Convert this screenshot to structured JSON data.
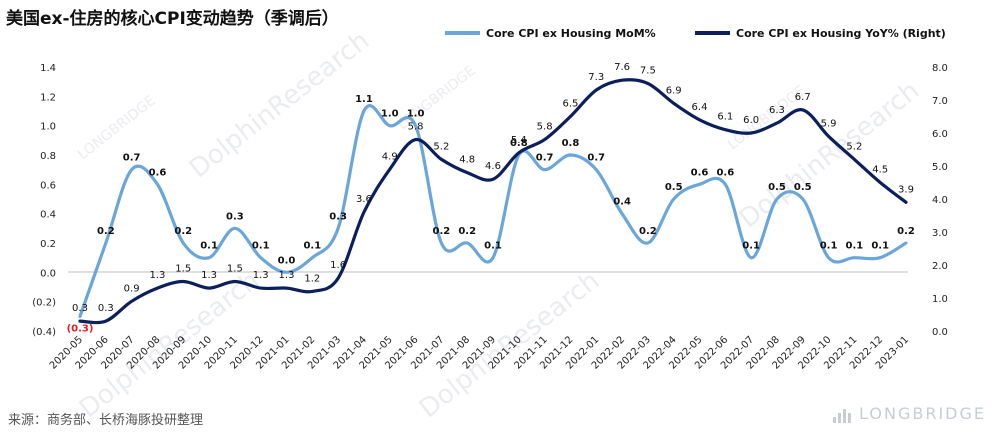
{
  "title": "美国ex-住房的核心CPI变动趋势（季调后）",
  "source": "来源：商务部、长桥海豚投研整理",
  "brand": "LONGBRIDGE",
  "watermark": "DolphinResearch",
  "watermark_small": "LONGBRIDGE",
  "colors": {
    "mom": "#6aa6d9",
    "yoy": "#0b1f5c",
    "negative_label": "#e02020"
  },
  "chart_data": {
    "type": "line",
    "categories": [
      "2020-05",
      "2020-06",
      "2020-07",
      "2020-08",
      "2020-09",
      "2020-10",
      "2020-11",
      "2020-12",
      "2021-01",
      "2021-02",
      "2021-03",
      "2021-04",
      "2021-05",
      "2021-06",
      "2021-07",
      "2021-08",
      "2021-09",
      "2021-10",
      "2021-11",
      "2021-12",
      "2022-01",
      "2022-02",
      "2022-03",
      "2022-04",
      "2022-05",
      "2022-06",
      "2022-07",
      "2022-08",
      "2022-09",
      "2022-10",
      "2022-11",
      "2022-12",
      "2023-01"
    ],
    "series": [
      {
        "name": "Core CPI ex Housing MoM%",
        "axis": "left",
        "values": [
          -0.3,
          0.2,
          0.7,
          0.6,
          0.2,
          0.1,
          0.3,
          0.1,
          0.0,
          0.1,
          0.3,
          1.1,
          1.0,
          1.0,
          0.2,
          0.2,
          0.1,
          0.8,
          0.7,
          0.8,
          0.7,
          0.4,
          0.2,
          0.5,
          0.6,
          0.6,
          0.1,
          0.5,
          0.5,
          0.1,
          0.1,
          0.1,
          0.2
        ],
        "labels": [
          "(0.3)",
          "0.2",
          "0.7",
          "0.6",
          "0.2",
          "0.1",
          "0.3",
          "0.1",
          "0.0",
          "0.1",
          "0.3",
          "1.1",
          "1.0",
          "1.0",
          "0.2",
          "0.2",
          "0.1",
          "0.8",
          "0.7",
          "0.8",
          "0.7",
          "0.4",
          "0.2",
          "0.5",
          "0.6",
          "0.6",
          "0.1",
          "0.5",
          "0.5",
          "0.1",
          "0.1",
          "0.1",
          "0.2"
        ]
      },
      {
        "name": "Core CPI ex Housing YoY%  (Right)",
        "axis": "right",
        "values": [
          0.3,
          0.3,
          0.9,
          1.3,
          1.5,
          1.3,
          1.5,
          1.3,
          1.3,
          1.2,
          1.6,
          3.6,
          4.9,
          5.8,
          5.2,
          4.8,
          4.6,
          5.4,
          5.8,
          6.5,
          7.3,
          7.6,
          7.5,
          6.9,
          6.4,
          6.1,
          6.0,
          6.3,
          6.7,
          5.9,
          5.2,
          4.5,
          3.9
        ],
        "labels": [
          "0.3",
          "0.3",
          "0.9",
          "1.3",
          "1.5",
          "1.3",
          "1.5",
          "1.3",
          "1.3",
          "1.2",
          "1.6",
          "3.6",
          "4.9",
          "5.8",
          "5.2",
          "4.8",
          "4.6",
          "5.4",
          "5.8",
          "6.5",
          "7.3",
          "7.6",
          "7.5",
          "6.9",
          "6.4",
          "6.1",
          "6.0",
          "6.3",
          "6.7",
          "5.9",
          "5.2",
          "4.5",
          "3.9"
        ]
      }
    ],
    "y_left": {
      "range": [
        -0.4,
        1.4
      ],
      "ticks": [
        "(0.4)",
        "(0.2)",
        "0.0",
        "0.2",
        "0.4",
        "0.6",
        "0.8",
        "1.0",
        "1.2",
        "1.4"
      ],
      "tick_values": [
        -0.4,
        -0.2,
        0.0,
        0.2,
        0.4,
        0.6,
        0.8,
        1.0,
        1.2,
        1.4
      ]
    },
    "y_right": {
      "range": [
        0.0,
        8.0
      ],
      "ticks": [
        "0.0",
        "1.0",
        "2.0",
        "3.0",
        "4.0",
        "5.0",
        "6.0",
        "7.0",
        "8.0"
      ],
      "tick_values": [
        0,
        1,
        2,
        3,
        4,
        5,
        6,
        7,
        8
      ]
    },
    "grid": false,
    "legend_position": "top-right"
  }
}
